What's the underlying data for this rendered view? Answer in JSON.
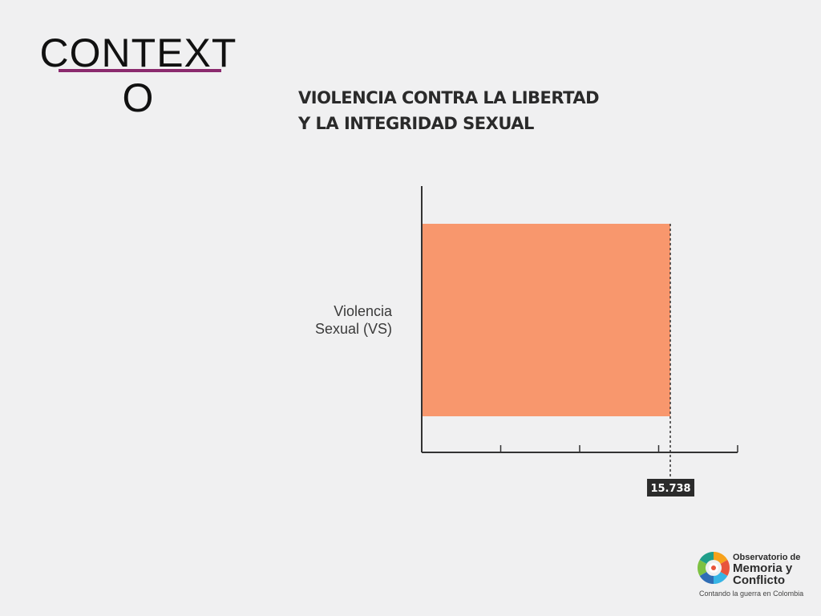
{
  "slide": {
    "title": "CONTEXTO",
    "title_line1": "CONTEXT",
    "title_line2": "O",
    "accent_color": "#8b2a6e"
  },
  "chart_data": {
    "type": "bar",
    "orientation": "horizontal",
    "title_lines": [
      "VIOLENCIA CONTRA LA LIBERTAD",
      "Y LA INTEGRIDAD SEXUAL"
    ],
    "categories": [
      "Violencia Sexual (VS)"
    ],
    "category_label_lines": [
      "Violencia",
      "Sexual (VS)"
    ],
    "values": [
      15738
    ],
    "value_labels": [
      "15.738"
    ],
    "bar_color": "#f8976d",
    "xlim": [
      0,
      20000
    ],
    "x_ticks": [
      0,
      5000,
      10000,
      15000,
      20000
    ],
    "grid": false,
    "reference_line": {
      "value": 15738,
      "style": "dashed"
    }
  },
  "logo": {
    "line1": "Observatorio de",
    "line2": "Memoria y",
    "line3": "Conflicto",
    "tagline": "Contando la guerra en Colombia",
    "ring_colors": [
      "#f7a21b",
      "#e8543c",
      "#36b4e5",
      "#2f6db5",
      "#7dc142",
      "#1f9e8a"
    ]
  }
}
